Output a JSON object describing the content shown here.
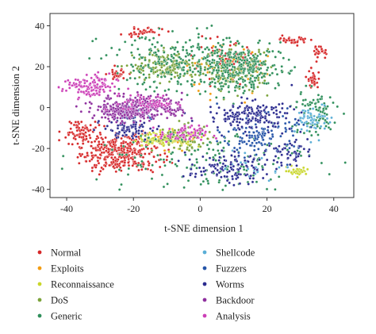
{
  "chart_data": {
    "type": "scatter",
    "title": "",
    "xlabel": "t-SNE dimension 1",
    "ylabel": "t-SNE dimension 2",
    "xlim": [
      -45,
      46
    ],
    "ylim": [
      -44,
      46
    ],
    "xticks": [
      -40,
      -20,
      0,
      20,
      40
    ],
    "yticks": [
      40,
      20,
      0,
      -20,
      -40
    ],
    "grid": false,
    "legend_placement": "bottom, two columns",
    "series": [
      {
        "name": "Normal",
        "color": "#d62728",
        "clusters": [
          {
            "cx": -24,
            "cy": -22,
            "rx": 12,
            "ry": 9,
            "n": 360
          },
          {
            "cx": -36,
            "cy": -12,
            "rx": 5,
            "ry": 6,
            "n": 70
          },
          {
            "cx": -25,
            "cy": 16,
            "rx": 3,
            "ry": 3,
            "n": 35
          },
          {
            "cx": -17,
            "cy": 37,
            "rx": 6,
            "ry": 2,
            "n": 40
          },
          {
            "cx": 28,
            "cy": 33,
            "rx": 4,
            "ry": 2,
            "n": 35
          },
          {
            "cx": 36,
            "cy": 27,
            "rx": 2,
            "ry": 3,
            "n": 25
          },
          {
            "cx": 34,
            "cy": 14,
            "rx": 2,
            "ry": 5,
            "n": 35
          },
          {
            "cx": 8,
            "cy": 22,
            "rx": 10,
            "ry": 9,
            "n": 70
          }
        ]
      },
      {
        "name": "Exploits",
        "color": "#f39c12",
        "clusters": [
          {
            "cx": 6,
            "cy": 18,
            "rx": 14,
            "ry": 12,
            "n": 55
          },
          {
            "cx": -5,
            "cy": -15,
            "rx": 7,
            "ry": 5,
            "n": 20
          }
        ]
      },
      {
        "name": "Reconnaissance",
        "color": "#c9d62a",
        "clusters": [
          {
            "cx": -8,
            "cy": -15,
            "rx": 8,
            "ry": 4,
            "n": 110
          },
          {
            "cx": -15,
            "cy": -16,
            "rx": 4,
            "ry": 1.5,
            "n": 35
          },
          {
            "cx": 29,
            "cy": -31,
            "rx": 3,
            "ry": 1.8,
            "n": 40
          }
        ]
      },
      {
        "name": "DoS",
        "color": "#7ba33a",
        "clusters": [
          {
            "cx": -10,
            "cy": 20,
            "rx": 10,
            "ry": 7,
            "n": 160
          },
          {
            "cx": 11,
            "cy": 18,
            "rx": 10,
            "ry": 10,
            "n": 140
          },
          {
            "cx": -5,
            "cy": -15,
            "rx": 9,
            "ry": 6,
            "n": 80
          }
        ]
      },
      {
        "name": "Generic",
        "color": "#2f8f5b",
        "clusters": [
          {
            "cx": -2,
            "cy": 22,
            "rx": 27,
            "ry": 14,
            "n": 300
          },
          {
            "cx": 12,
            "cy": 18,
            "rx": 12,
            "ry": 11,
            "n": 220
          },
          {
            "cx": 0,
            "cy": -25,
            "rx": 35,
            "ry": 15,
            "n": 160
          },
          {
            "cx": 34,
            "cy": -3,
            "rx": 7,
            "ry": 12,
            "n": 90
          }
        ]
      },
      {
        "name": "Shellcode",
        "color": "#5aaed6",
        "clusters": [
          {
            "cx": 34,
            "cy": -6,
            "rx": 5,
            "ry": 8,
            "n": 60
          },
          {
            "cx": 16,
            "cy": -30,
            "rx": 8,
            "ry": 6,
            "n": 25
          }
        ]
      },
      {
        "name": "Fuzzers",
        "color": "#2554a8",
        "clusters": [
          {
            "cx": 18,
            "cy": -14,
            "rx": 11,
            "ry": 10,
            "n": 130
          },
          {
            "cx": -20,
            "cy": -3,
            "rx": 7,
            "ry": 4,
            "n": 30
          }
        ]
      },
      {
        "name": "Worms",
        "color": "#2b2b8f",
        "clusters": [
          {
            "cx": 15,
            "cy": -4,
            "rx": 13,
            "ry": 7,
            "n": 170
          },
          {
            "cx": -22,
            "cy": -10,
            "rx": 7,
            "ry": 5,
            "n": 90
          },
          {
            "cx": 8,
            "cy": -30,
            "rx": 12,
            "ry": 7,
            "n": 110
          },
          {
            "cx": 26,
            "cy": -22,
            "rx": 6,
            "ry": 6,
            "n": 50
          }
        ]
      },
      {
        "name": "Backdoor",
        "color": "#8e2f9e",
        "clusters": [
          {
            "cx": -18,
            "cy": 0,
            "rx": 13,
            "ry": 6,
            "n": 320
          },
          {
            "cx": -24,
            "cy": -3,
            "rx": 5,
            "ry": 4,
            "n": 60
          }
        ]
      },
      {
        "name": "Analysis",
        "color": "#cc3fb7",
        "clusters": [
          {
            "cx": -33,
            "cy": 10,
            "rx": 8,
            "ry": 6,
            "n": 130
          },
          {
            "cx": -5,
            "cy": -13,
            "rx": 7,
            "ry": 4,
            "n": 70
          },
          {
            "cx": -15,
            "cy": 2,
            "rx": 8,
            "ry": 4,
            "n": 60
          }
        ]
      }
    ]
  }
}
